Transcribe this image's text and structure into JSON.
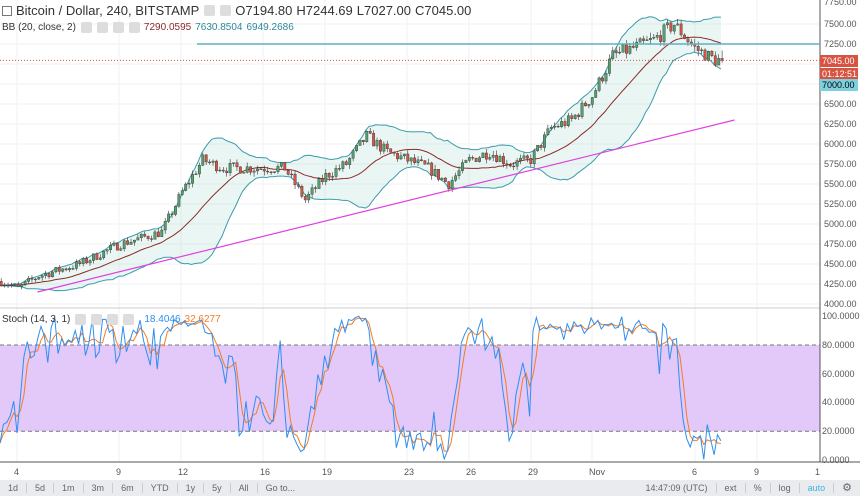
{
  "header": {
    "symbol": "Bitcoin / Dollar, 240, BITSTAMP",
    "open": "O7194.80",
    "high": "H7244.69",
    "low": "L7027.00",
    "close": "C7045.00"
  },
  "bb": {
    "label": "BB (20, close, 2)",
    "basis": "7290.0595",
    "upper": "7630.8504",
    "lower": "6949.2686"
  },
  "stoch": {
    "label": "Stoch (14, 3, 1)",
    "k": "18.4046",
    "d": "32.6277"
  },
  "price_axis": [
    "7750.00",
    "7500.00",
    "7250.00",
    "6500.00",
    "6250.00",
    "6000.00",
    "5750.00",
    "5500.00",
    "5250.00",
    "5000.00",
    "4750.00",
    "4500.00",
    "4250.00",
    "4000.00"
  ],
  "price_labels": {
    "last": "7045.00",
    "countdown": "01:12:51",
    "level": "7000.00"
  },
  "stoch_axis": [
    "100.0000",
    "80.0000",
    "60.0000",
    "40.0000",
    "20.0000",
    "0.0000"
  ],
  "time_axis": [
    "4",
    "9",
    "12",
    "16",
    "19",
    "23",
    "26",
    "29",
    "Nov",
    "6",
    "9",
    "1"
  ],
  "toolbar": {
    "ranges": [
      "1d",
      "5d",
      "1m",
      "3m",
      "6m",
      "YTD",
      "1y",
      "5y",
      "All",
      "Go to..."
    ],
    "time": "14:47:09 (UTC)",
    "ext": "ext",
    "percent": "%",
    "log": "log",
    "auto": "auto"
  },
  "colors": {
    "up": "#53a070",
    "down": "#d75442",
    "bb": "#3b9bab",
    "basis": "#8b2a2a",
    "trend": "#e040e0",
    "stoch_k": "#2f8ff0",
    "stoch_d": "#f57c22",
    "stoch_band": "#e3c8fa"
  },
  "chart_data": {
    "type": "candlestick",
    "timeframe": "240",
    "approx_close": [
      [
        "Oct 3",
        4300
      ],
      [
        "Oct 4",
        4200
      ],
      [
        "Oct 5",
        4350
      ],
      [
        "Oct 7",
        4500
      ],
      [
        "Oct 9",
        4750
      ],
      [
        "Oct 11",
        4900
      ],
      [
        "Oct 12",
        5400
      ],
      [
        "Oct 13",
        5800
      ],
      [
        "Oct 14",
        5700
      ],
      [
        "Oct 16",
        5700
      ],
      [
        "Oct 17",
        5700
      ],
      [
        "Oct 18",
        5300
      ],
      [
        "Oct 19",
        5600
      ],
      [
        "Oct 20",
        5750
      ],
      [
        "Oct 21",
        6100
      ],
      [
        "Oct 22",
        5900
      ],
      [
        "Oct 24",
        5700
      ],
      [
        "Oct 25",
        5500
      ],
      [
        "Oct 26",
        5800
      ],
      [
        "Oct 27",
        5900
      ],
      [
        "Oct 28",
        5750
      ],
      [
        "Oct 29",
        5800
      ],
      [
        "Oct 30",
        6200
      ],
      [
        "Oct 31",
        6300
      ],
      [
        "Nov 1",
        6600
      ],
      [
        "Nov 2",
        7100
      ],
      [
        "Nov 3",
        7200
      ],
      [
        "Nov 4",
        7300
      ],
      [
        "Nov 5",
        7500
      ],
      [
        "Nov 6",
        7200
      ],
      [
        "Nov 7",
        7050
      ],
      [
        "Nov 7.5",
        7045
      ]
    ],
    "support_level": 7000,
    "trendline": [
      [
        "Oct 5",
        4150
      ],
      [
        "Nov 8",
        6300
      ]
    ],
    "ylim": [
      4000,
      7750
    ],
    "stoch_ylim": [
      0,
      100
    ],
    "stoch_bands": [
      20,
      80
    ]
  }
}
